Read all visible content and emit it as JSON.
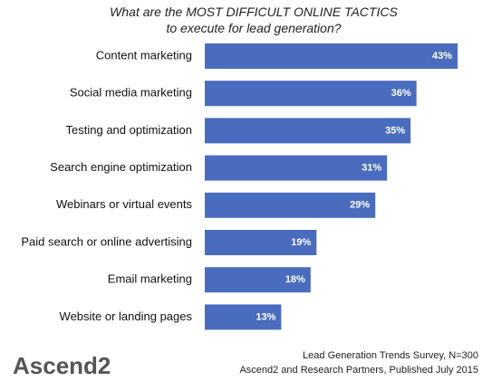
{
  "chart_data": {
    "type": "bar",
    "orientation": "horizontal",
    "title": "What are the MOST DIFFICULT ONLINE TACTICS to execute for lead generation?",
    "categories": [
      "Content marketing",
      "Social media marketing",
      "Testing and optimization",
      "Search engine optimization",
      "Webinars or virtual events",
      "Paid search or online advertising",
      "Email marketing",
      "Website or landing pages"
    ],
    "values": [
      43,
      36,
      35,
      31,
      29,
      19,
      18,
      13
    ],
    "value_labels": [
      "43%",
      "36%",
      "35%",
      "31%",
      "29%",
      "19%",
      "18%",
      "13%"
    ],
    "color": "#4a6cbf",
    "source": [
      "Lead Generation Trends Survey, N=300",
      "Ascend2 and Research Partners, Published July 2015"
    ],
    "logo": "Ascend2"
  }
}
